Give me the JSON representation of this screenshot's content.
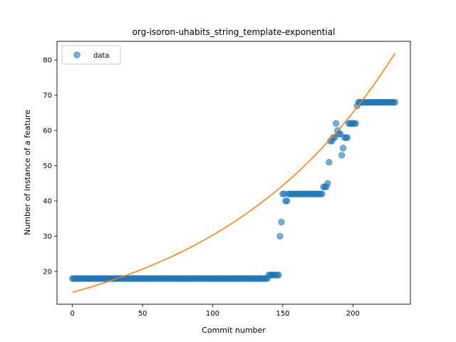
{
  "chart_data": {
    "type": "scatter",
    "title": "org-isoron-uhabits_string_template-exponential",
    "xlabel": "Commit number",
    "ylabel": "Number of instance of a feature",
    "xlim": [
      -11,
      241
    ],
    "ylim": [
      10.7,
      85.3
    ],
    "xticks": [
      0,
      50,
      100,
      150,
      200
    ],
    "yticks": [
      20,
      30,
      40,
      50,
      60,
      70,
      80
    ],
    "grid": false,
    "legend": {
      "placement": "top-left",
      "entries": [
        "data"
      ]
    },
    "colors": {
      "data": "#1f77b4",
      "fit": "#ff7f0e"
    },
    "series": [
      {
        "name": "data",
        "kind": "scatter",
        "segments": [
          {
            "from": 0,
            "to": 139,
            "y": 18
          },
          {
            "from": 140,
            "to": 147,
            "y": 19
          },
          {
            "from": 154,
            "to": 177,
            "y": 42
          },
          {
            "from": 205,
            "to": 230,
            "y": 68
          }
        ],
        "points": [
          [
            148,
            30
          ],
          [
            149,
            34
          ],
          [
            150,
            42
          ],
          [
            151,
            42
          ],
          [
            152,
            40
          ],
          [
            153,
            40
          ],
          [
            178,
            42
          ],
          [
            179,
            44
          ],
          [
            180,
            44
          ],
          [
            181,
            44
          ],
          [
            182,
            45
          ],
          [
            183,
            51
          ],
          [
            184,
            57
          ],
          [
            185,
            57
          ],
          [
            186,
            58
          ],
          [
            187,
            58
          ],
          [
            188,
            62
          ],
          [
            189,
            60
          ],
          [
            190,
            59
          ],
          [
            191,
            59
          ],
          [
            192,
            53
          ],
          [
            193,
            55
          ],
          [
            194,
            58
          ],
          [
            195,
            58
          ],
          [
            196,
            58
          ],
          [
            197,
            62
          ],
          [
            198,
            62
          ],
          [
            199,
            62
          ],
          [
            200,
            62
          ],
          [
            201,
            62
          ],
          [
            202,
            62
          ],
          [
            203,
            67
          ],
          [
            204,
            68
          ]
        ]
      },
      {
        "kind": "line",
        "model": {
          "a": 14.1,
          "b": 0.00765
        },
        "x_range": [
          0,
          230
        ]
      }
    ]
  }
}
